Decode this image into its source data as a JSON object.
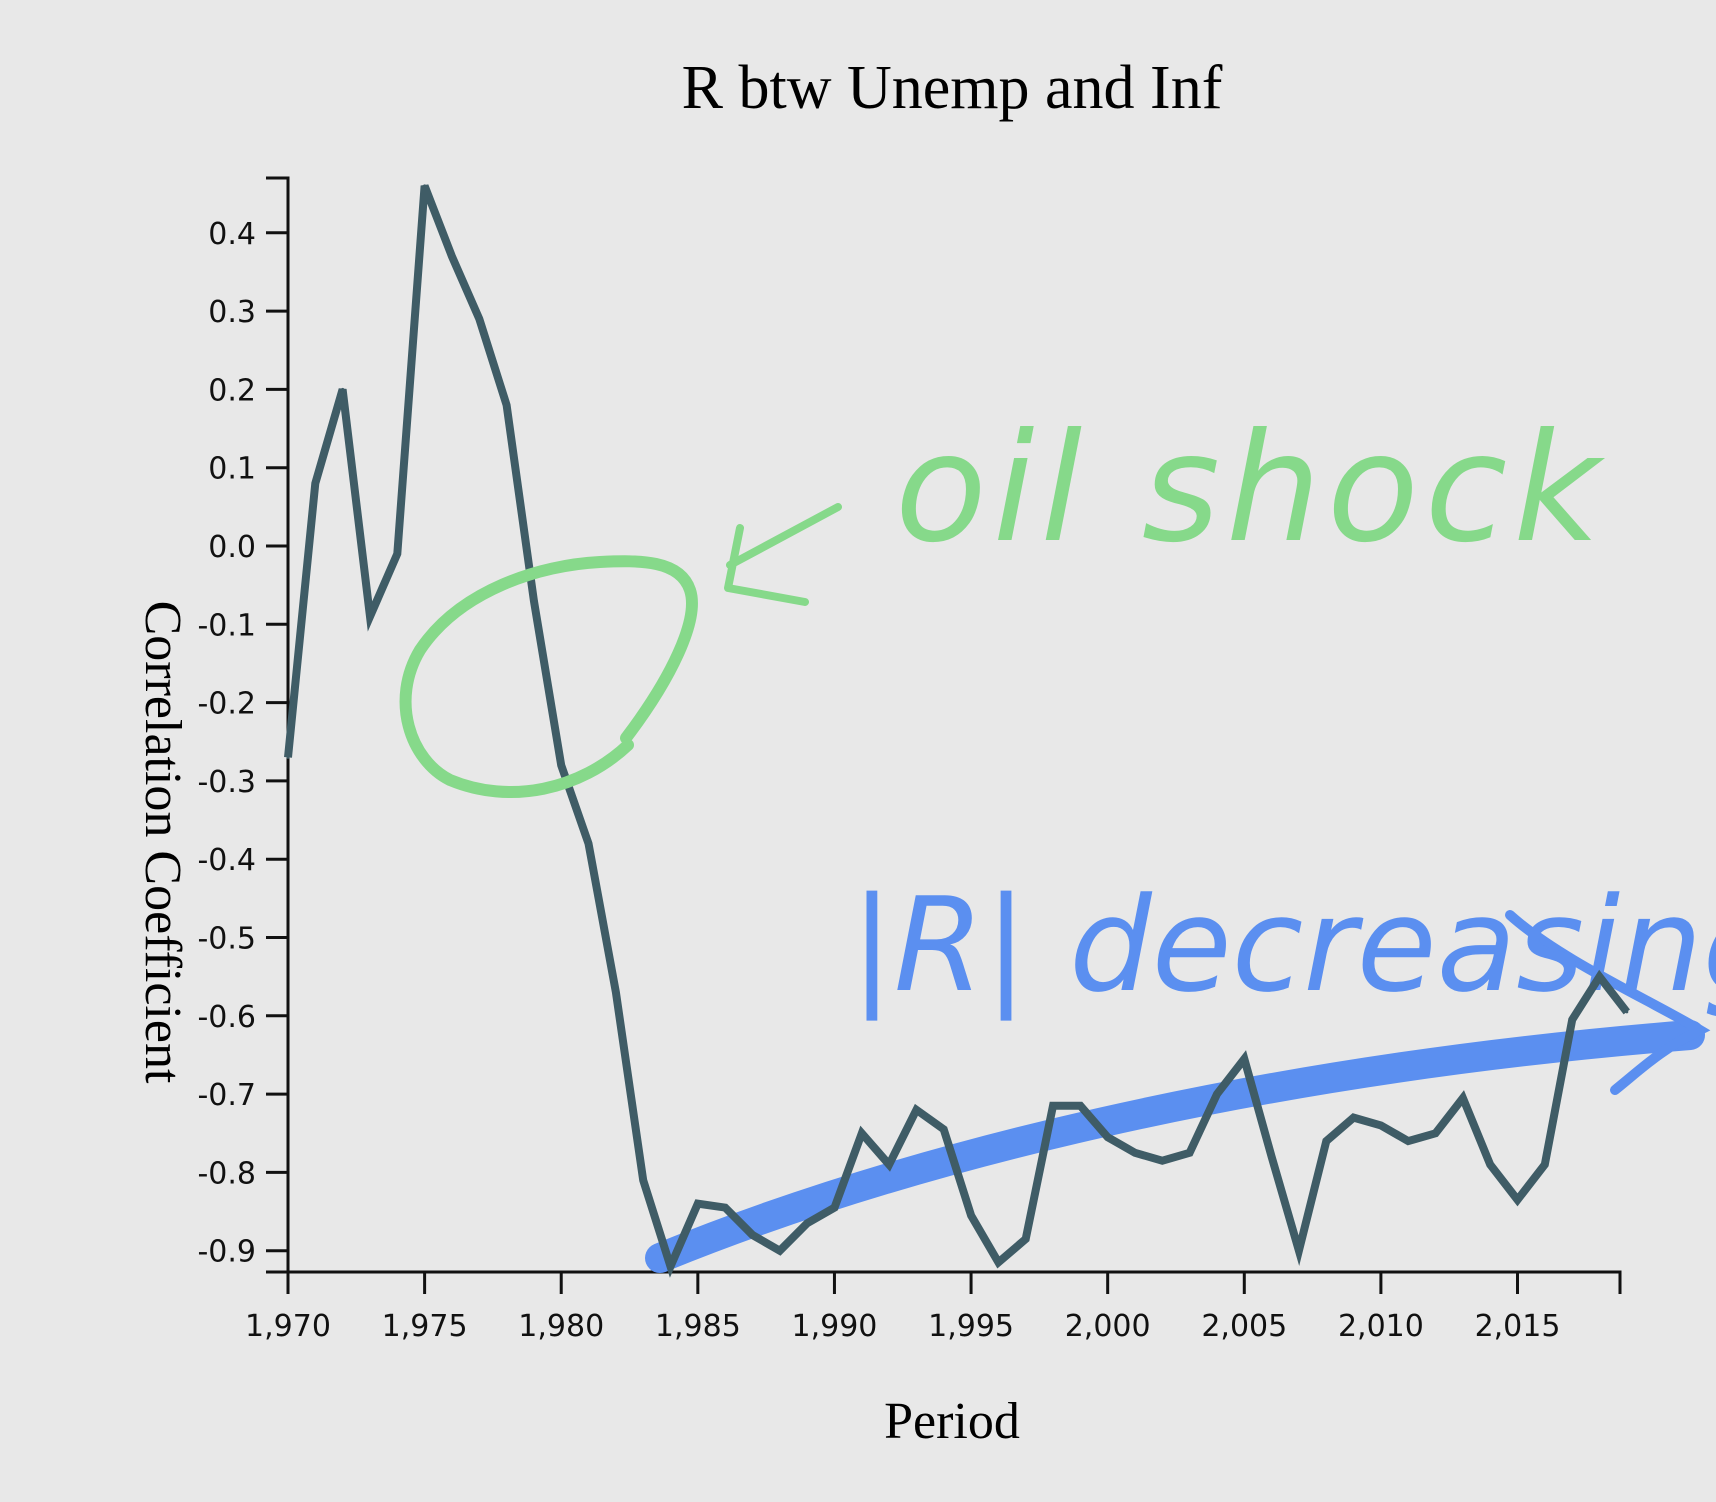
{
  "chart_data": {
    "type": "line",
    "title": "R btw Unemp and Inf",
    "xlabel": "Period",
    "ylabel": "Correlation Coefficient",
    "xlim": [
      1970,
      2019
    ],
    "ylim": [
      -0.925,
      0.47
    ],
    "x_ticks": [
      1970,
      1975,
      1980,
      1985,
      1990,
      1995,
      2000,
      2005,
      2010,
      2015
    ],
    "x_tick_labels": [
      "1,970",
      "1,975",
      "1,980",
      "1,985",
      "1,990",
      "1,995",
      "2,000",
      "2,005",
      "2,010",
      "2,015"
    ],
    "y_ticks": [
      0.4,
      0.3,
      0.2,
      0.1,
      0.0,
      -0.1,
      -0.2,
      -0.3,
      -0.4,
      -0.5,
      -0.6,
      -0.7,
      -0.8,
      -0.9
    ],
    "y_tick_labels": [
      "0.4",
      "0.3",
      "0.2",
      "0.1",
      "0.0",
      "-0.1",
      "-0.2",
      "-0.3",
      "-0.4",
      "-0.5",
      "-0.6",
      "-0.7",
      "-0.8",
      "-0.9"
    ],
    "grid": false,
    "line_color": "#3f5c66",
    "x": [
      1970,
      1971,
      1972,
      1973,
      1974,
      1975,
      1976,
      1977,
      1978,
      1979,
      1980,
      1981,
      1982,
      1983,
      1984,
      1985,
      1986,
      1987,
      1988,
      1989,
      1990,
      1991,
      1992,
      1993,
      1994,
      1995,
      1996,
      1997,
      1998,
      1999,
      2000,
      2001,
      2002,
      2003,
      2004,
      2005,
      2006,
      2007,
      2008,
      2009,
      2010,
      2011,
      2012,
      2013,
      2014,
      2015,
      2016,
      2017,
      2018,
      2019
    ],
    "y": [
      -0.27,
      0.08,
      0.2,
      -0.09,
      -0.01,
      0.46,
      0.37,
      0.29,
      0.18,
      -0.07,
      -0.28,
      -0.38,
      -0.57,
      -0.81,
      -0.92,
      -0.84,
      -0.845,
      -0.88,
      -0.9,
      -0.865,
      -0.845,
      -0.75,
      -0.79,
      -0.72,
      -0.745,
      -0.855,
      -0.915,
      -0.885,
      -0.715,
      -0.715,
      -0.755,
      -0.775,
      -0.785,
      -0.775,
      -0.7,
      -0.655,
      -0.78,
      -0.9,
      -0.76,
      -0.73,
      -0.74,
      -0.76,
      -0.75,
      -0.705,
      -0.79,
      -0.835,
      -0.79,
      -0.605,
      -0.55,
      -0.595
    ]
  },
  "annotations": {
    "oil_shock_text": "oil shock",
    "oil_shock_color": "#86d98a",
    "decreasing_text": "|R| decreasing",
    "decreasing_color": "#5b8ff0"
  }
}
